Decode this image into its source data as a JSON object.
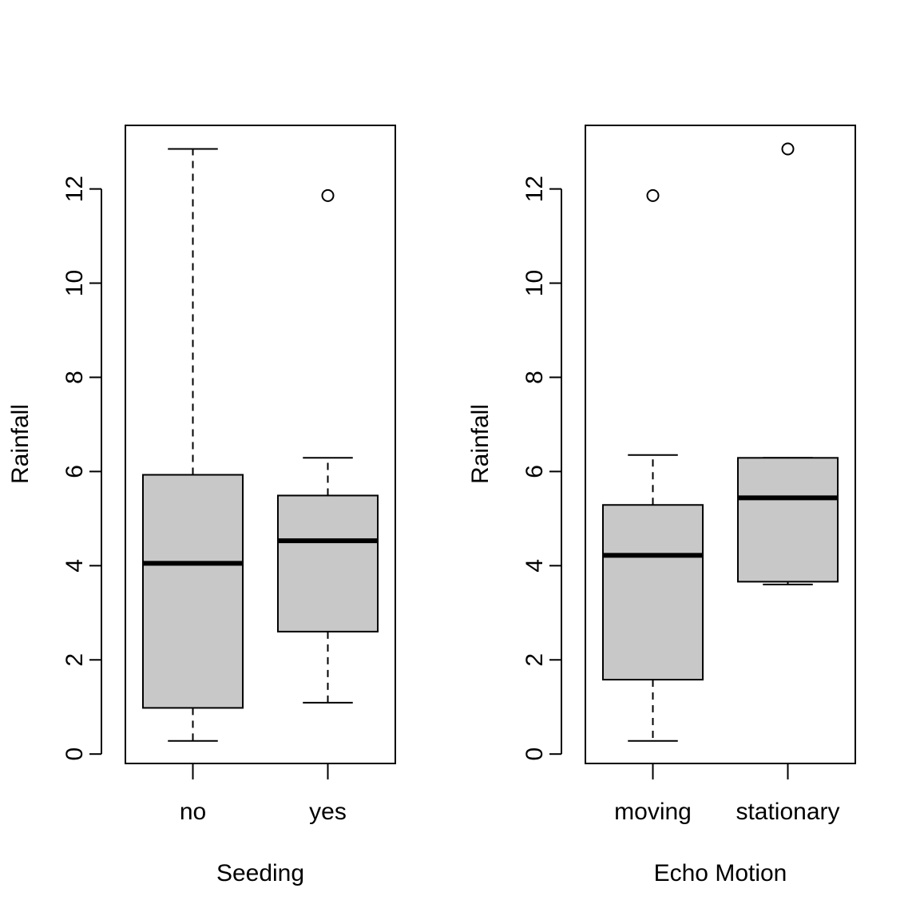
{
  "chart_data": [
    {
      "type": "boxplot",
      "xlabel": "Seeding",
      "ylabel": "Rainfall",
      "categories": [
        "no",
        "yes"
      ],
      "ylim": [
        -0.2,
        13.35
      ],
      "yticks": [
        0,
        2,
        4,
        6,
        8,
        10,
        12
      ],
      "grid": false,
      "box_fill": "#c8c8c8",
      "boxes": [
        {
          "category": "no",
          "whisker_low": 0.28,
          "q1": 0.98,
          "median": 4.05,
          "q3": 5.93,
          "whisker_high": 12.85,
          "outliers": []
        },
        {
          "category": "yes",
          "whisker_low": 1.09,
          "q1": 2.6,
          "median": 4.53,
          "q3": 5.49,
          "whisker_high": 6.29,
          "outliers": [
            11.86
          ]
        }
      ]
    },
    {
      "type": "boxplot",
      "xlabel": "Echo Motion",
      "ylabel": "Rainfall",
      "categories": [
        "moving",
        "stationary"
      ],
      "ylim": [
        -0.2,
        13.35
      ],
      "yticks": [
        0,
        2,
        4,
        6,
        8,
        10,
        12
      ],
      "grid": false,
      "box_fill": "#c8c8c8",
      "boxes": [
        {
          "category": "moving",
          "whisker_low": 0.28,
          "q1": 1.58,
          "median": 4.22,
          "q3": 5.29,
          "whisker_high": 6.35,
          "outliers": [
            11.86
          ]
        },
        {
          "category": "stationary",
          "whisker_low": 3.6,
          "q1": 3.66,
          "median": 5.44,
          "q3": 6.29,
          "whisker_high": 6.29,
          "outliers": [
            12.85
          ]
        }
      ]
    }
  ]
}
